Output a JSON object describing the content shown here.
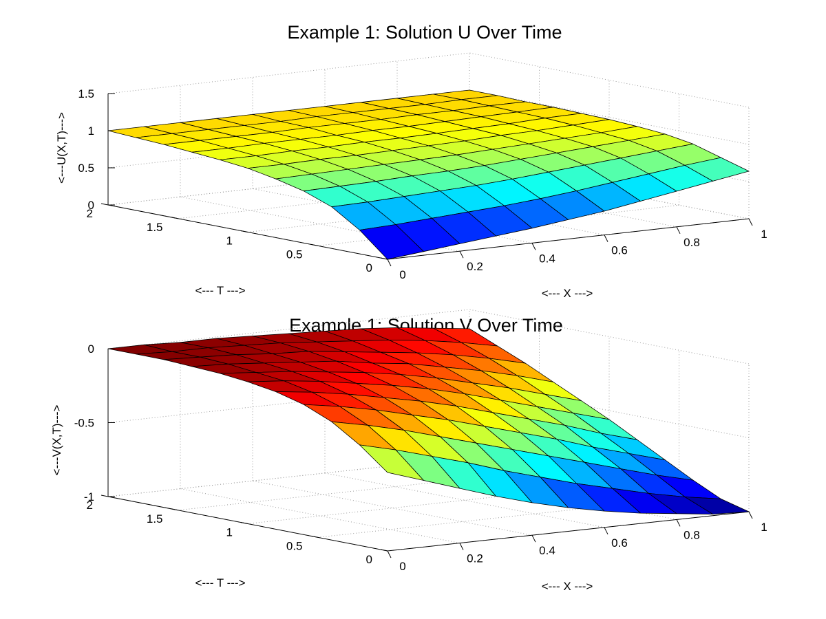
{
  "chart_data": [
    {
      "type": "surface",
      "title": "Example 1: Solution U Over Time",
      "xlabel": "<--- X --->",
      "ylabel": "<--- T --->",
      "zlabel": "<---U(X,T)--->",
      "xlim": [
        0,
        1
      ],
      "ylim": [
        0,
        2
      ],
      "zlim": [
        0,
        1.5
      ],
      "xticks": [
        "0",
        "0.2",
        "0.4",
        "0.6",
        "0.8",
        "1"
      ],
      "yticks": [
        "0",
        "0.5",
        "1",
        "1.5",
        "2"
      ],
      "zticks": [
        "0",
        "0.5",
        "1",
        "1.5"
      ],
      "x": [
        0,
        0.1,
        0.2,
        0.3,
        0.4,
        0.5,
        0.6,
        0.7,
        0.8,
        0.9,
        1.0
      ],
      "t": [
        0,
        0.2,
        0.4,
        0.6,
        0.8,
        1.0,
        1.2,
        1.4,
        1.6,
        1.8,
        2.0
      ],
      "z_rows_by_t": [
        [
          0.0,
          0.05,
          0.1,
          0.15,
          0.2,
          0.26,
          0.32,
          0.4,
          0.48,
          0.56,
          0.64
        ],
        [
          0.32,
          0.34,
          0.37,
          0.4,
          0.43,
          0.47,
          0.52,
          0.58,
          0.64,
          0.7,
          0.75
        ],
        [
          0.56,
          0.57,
          0.59,
          0.61,
          0.63,
          0.66,
          0.7,
          0.74,
          0.78,
          0.82,
          0.86
        ],
        [
          0.7,
          0.71,
          0.72,
          0.74,
          0.75,
          0.77,
          0.8,
          0.83,
          0.86,
          0.89,
          0.92
        ],
        [
          0.79,
          0.8,
          0.81,
          0.82,
          0.83,
          0.84,
          0.86,
          0.88,
          0.9,
          0.92,
          0.95
        ],
        [
          0.86,
          0.86,
          0.87,
          0.87,
          0.88,
          0.89,
          0.9,
          0.92,
          0.93,
          0.95,
          0.97
        ],
        [
          0.9,
          0.9,
          0.91,
          0.91,
          0.92,
          0.92,
          0.93,
          0.94,
          0.95,
          0.97,
          0.98
        ],
        [
          0.93,
          0.93,
          0.94,
          0.94,
          0.94,
          0.95,
          0.95,
          0.96,
          0.97,
          0.98,
          0.99
        ],
        [
          0.96,
          0.96,
          0.96,
          0.96,
          0.97,
          0.97,
          0.97,
          0.98,
          0.98,
          0.99,
          0.99
        ],
        [
          0.98,
          0.98,
          0.98,
          0.98,
          0.98,
          0.99,
          0.99,
          0.99,
          0.99,
          1.0,
          1.0
        ],
        [
          1.0,
          1.0,
          1.0,
          1.0,
          1.0,
          1.0,
          1.0,
          1.0,
          1.0,
          1.0,
          1.0
        ]
      ],
      "colormap": "jet",
      "edge_color": "#000000",
      "grid": true
    },
    {
      "type": "surface",
      "title": "Example 1: Solution V Over Time",
      "xlabel": "<--- X --->",
      "ylabel": "<--- T --->",
      "zlabel": "<---V(X,T)--->",
      "xlim": [
        0,
        1
      ],
      "ylim": [
        0,
        2
      ],
      "zlim": [
        -1,
        0
      ],
      "xticks": [
        "0",
        "0.2",
        "0.4",
        "0.6",
        "0.8",
        "1"
      ],
      "yticks": [
        "0",
        "0.5",
        "1",
        "1.5",
        "2"
      ],
      "zticks": [
        "-1",
        "-0.5",
        "0"
      ],
      "x": [
        0,
        0.1,
        0.2,
        0.3,
        0.4,
        0.5,
        0.6,
        0.7,
        0.8,
        0.9,
        1.0
      ],
      "t": [
        0,
        0.2,
        0.4,
        0.6,
        0.8,
        1.0,
        1.2,
        1.4,
        1.6,
        1.8,
        2.0
      ],
      "z_rows_by_t": [
        [
          -0.47,
          -0.55,
          -0.63,
          -0.71,
          -0.78,
          -0.84,
          -0.89,
          -0.93,
          -0.96,
          -0.99,
          -1.0
        ],
        [
          -0.32,
          -0.38,
          -0.45,
          -0.52,
          -0.6,
          -0.67,
          -0.74,
          -0.8,
          -0.86,
          -0.91,
          -0.95
        ],
        [
          -0.2,
          -0.25,
          -0.31,
          -0.38,
          -0.45,
          -0.52,
          -0.59,
          -0.66,
          -0.73,
          -0.8,
          -0.86
        ],
        [
          -0.12,
          -0.16,
          -0.21,
          -0.27,
          -0.33,
          -0.4,
          -0.47,
          -0.54,
          -0.62,
          -0.69,
          -0.76
        ],
        [
          -0.07,
          -0.1,
          -0.14,
          -0.19,
          -0.24,
          -0.3,
          -0.37,
          -0.44,
          -0.51,
          -0.59,
          -0.66
        ],
        [
          -0.04,
          -0.06,
          -0.09,
          -0.13,
          -0.17,
          -0.22,
          -0.28,
          -0.35,
          -0.42,
          -0.49,
          -0.56
        ],
        [
          -0.02,
          -0.04,
          -0.06,
          -0.09,
          -0.12,
          -0.16,
          -0.21,
          -0.27,
          -0.33,
          -0.4,
          -0.47
        ],
        [
          -0.01,
          -0.02,
          -0.04,
          -0.06,
          -0.08,
          -0.12,
          -0.15,
          -0.2,
          -0.25,
          -0.31,
          -0.38
        ],
        [
          0.0,
          -0.01,
          -0.02,
          -0.04,
          -0.05,
          -0.08,
          -0.11,
          -0.14,
          -0.18,
          -0.23,
          -0.29
        ],
        [
          0.0,
          -0.01,
          -0.01,
          -0.02,
          -0.03,
          -0.05,
          -0.07,
          -0.09,
          -0.12,
          -0.16,
          -0.21
        ],
        [
          0.0,
          0.0,
          -0.01,
          -0.01,
          -0.02,
          -0.03,
          -0.04,
          -0.05,
          -0.07,
          -0.1,
          -0.13
        ]
      ],
      "colormap": "jet",
      "edge_color": "#000000",
      "grid": true
    }
  ]
}
